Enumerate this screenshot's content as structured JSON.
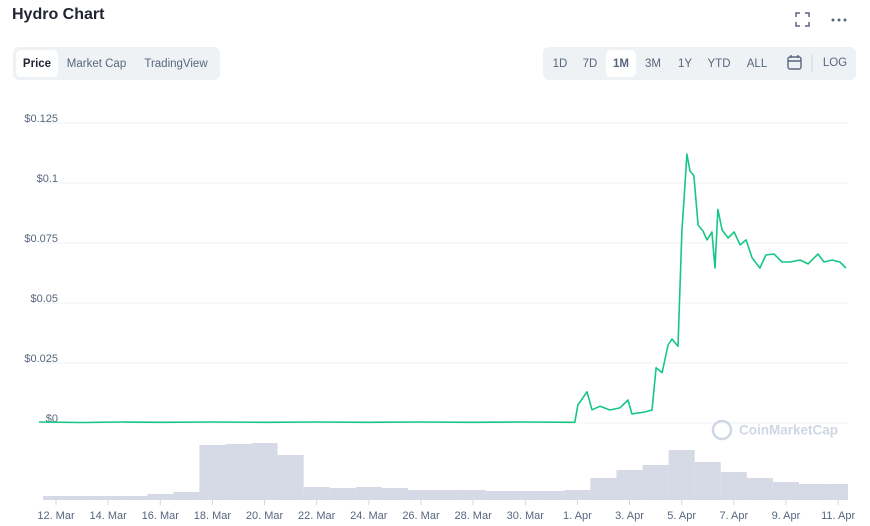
{
  "ui": {
    "title": "Hydro Chart",
    "tabs": [
      "Price",
      "Market Cap",
      "TradingView"
    ],
    "active_tab": 0,
    "ranges": [
      "1D",
      "7D",
      "1M",
      "3M",
      "1Y",
      "YTD",
      "ALL"
    ],
    "active_range": 2,
    "log": "LOG",
    "watermark": "CoinMarketCap"
  },
  "chart_data": {
    "type": "line",
    "xlim": [
      -0.69,
      30.38
    ],
    "xticks": [
      {
        "value": 0,
        "label": "12. Mar"
      },
      {
        "value": 2,
        "label": "14. Mar"
      },
      {
        "value": 4,
        "label": "16. Mar"
      },
      {
        "value": 6,
        "label": "18. Mar"
      },
      {
        "value": 8,
        "label": "20. Mar"
      },
      {
        "value": 10,
        "label": "22. Mar"
      },
      {
        "value": 12,
        "label": "24. Mar"
      },
      {
        "value": 14,
        "label": "26. Mar"
      },
      {
        "value": 16,
        "label": "28. Mar"
      },
      {
        "value": 18,
        "label": "30. Mar"
      },
      {
        "value": 20,
        "label": "1. Apr"
      },
      {
        "value": 22,
        "label": "3. Apr"
      },
      {
        "value": 24,
        "label": "5. Apr"
      },
      {
        "value": 26,
        "label": "7. Apr"
      },
      {
        "value": 28,
        "label": "9. Apr"
      },
      {
        "value": 30,
        "label": "11. Apr"
      }
    ],
    "ylim": [
      0,
      0.125
    ],
    "yticks": [
      {
        "value": 0,
        "label": "$0"
      },
      {
        "value": 0.025,
        "label": "$0.025"
      },
      {
        "value": 0.05,
        "label": "$0.05"
      },
      {
        "value": 0.075,
        "label": "$0.075"
      },
      {
        "value": 0.1,
        "label": "$0.1"
      },
      {
        "value": 0.125,
        "label": "$0.125"
      }
    ],
    "grid": true,
    "x": [
      -0.65,
      1,
      2.5,
      4,
      6,
      8,
      10,
      12,
      14,
      16,
      18,
      19.9,
      20.02,
      20.37,
      20.56,
      20.87,
      21.25,
      21.63,
      21.94,
      22.09,
      22.59,
      22.86,
      23.02,
      23.25,
      23.48,
      23.63,
      23.86,
      24.01,
      24.09,
      24.2,
      24.32,
      24.47,
      24.63,
      24.82,
      24.97,
      25.16,
      25.28,
      25.39,
      25.55,
      25.78,
      26.01,
      26.24,
      26.47,
      26.7,
      27.0,
      27.23,
      27.54,
      27.85,
      28.16,
      28.54,
      28.85,
      29.23,
      29.46,
      29.77,
      30.07,
      30.3
    ],
    "series": [
      {
        "color": "#16c784",
        "values": [
          0.0004,
          0.0002,
          0.0004,
          0.0003,
          0.0004,
          0.0003,
          0.0004,
          0.0003,
          0.0004,
          0.0003,
          0.0004,
          0.0003,
          0.0075,
          0.013,
          0.0055,
          0.007,
          0.0054,
          0.0063,
          0.0096,
          0.0038,
          0.0046,
          0.0054,
          0.023,
          0.021,
          0.0325,
          0.035,
          0.032,
          0.08,
          0.093,
          0.112,
          0.105,
          0.103,
          0.0825,
          0.08,
          0.0763,
          0.0796,
          0.0646,
          0.089,
          0.0804,
          0.0771,
          0.0796,
          0.0742,
          0.0763,
          0.0688,
          0.0646,
          0.07,
          0.0704,
          0.0671,
          0.0671,
          0.0679,
          0.0663,
          0.0704,
          0.0671,
          0.0679,
          0.0671,
          0.0646
        ]
      }
    ],
    "volume": {
      "color": "#d6dae6",
      "ylim": [
        0,
        60
      ],
      "x": [
        0,
        1,
        2,
        3,
        4,
        5,
        6,
        7,
        8,
        9,
        10,
        11,
        12,
        13,
        14,
        15,
        16,
        17,
        18,
        19,
        20,
        21,
        22,
        23,
        24,
        25,
        26,
        27,
        28,
        29,
        30
      ],
      "values": [
        4,
        4,
        4,
        4,
        6,
        8,
        55,
        56,
        57,
        45,
        13,
        12,
        13,
        12,
        10,
        10,
        10,
        9,
        9,
        9,
        10,
        22,
        30,
        35,
        50,
        38,
        28,
        22,
        18,
        16,
        16
      ]
    }
  }
}
